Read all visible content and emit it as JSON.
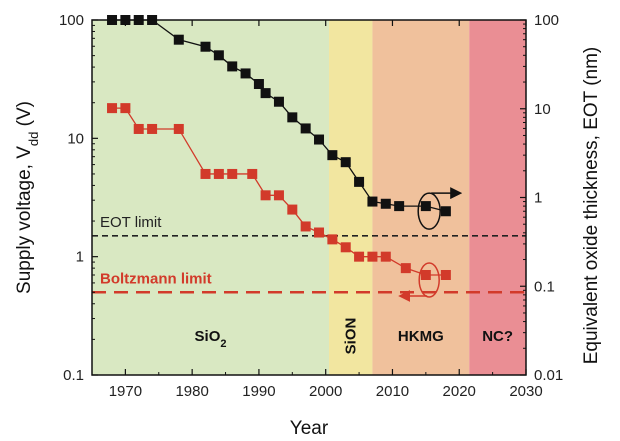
{
  "chart_data": {
    "type": "scatter",
    "title": "",
    "xlabel": "Year",
    "ylabel_left": "Supply voltage, V",
    "ylabel_left_sub": "dd",
    "ylabel_left_unit": " (V)",
    "ylabel_right": "Equivalent oxide thickness, EOT (nm)",
    "xlim": [
      1965,
      2030
    ],
    "ylim_left": [
      0.1,
      100
    ],
    "ylim_right": [
      0.01,
      100
    ],
    "yscale": "log",
    "x_ticks": [
      1970,
      1980,
      1990,
      2000,
      2010,
      2020,
      2030
    ],
    "y_left_ticks": [
      {
        "value": 0.1,
        "label": "0.1"
      },
      {
        "value": 1,
        "label": "1"
      },
      {
        "value": 10,
        "label": "10"
      },
      {
        "value": 100,
        "label": "100"
      }
    ],
    "y_right_ticks": [
      {
        "value": 0.01,
        "label": "0.01"
      },
      {
        "value": 0.1,
        "label": "0.1"
      },
      {
        "value": 1,
        "label": "1"
      },
      {
        "value": 10,
        "label": "10"
      },
      {
        "value": 100,
        "label": "100"
      }
    ],
    "regions": [
      {
        "label": "SiO",
        "sub": "2",
        "x0": 1965,
        "x1": 2000.5,
        "color": "#d9e8c2",
        "vertical": false
      },
      {
        "label": "SiON",
        "sub": "",
        "x0": 2000.5,
        "x1": 2007,
        "color": "#f2e6a0",
        "vertical": true
      },
      {
        "label": "HKMG",
        "sub": "",
        "x0": 2007,
        "x1": 2021.5,
        "color": "#f0c19c",
        "vertical": false
      },
      {
        "label": "NC?",
        "sub": "",
        "x0": 2021.5,
        "x1": 2030,
        "color": "#ea8e94",
        "vertical": false
      }
    ],
    "reference_lines": [
      {
        "label": "EOT limit",
        "y": 1.5,
        "axis": "left",
        "color": "#222222"
      },
      {
        "label": "Boltzmann limit",
        "y": 0.5,
        "axis": "left",
        "color": "#d23a2a"
      }
    ],
    "series": [
      {
        "axis": "right",
        "color": "#111111",
        "x": [
          1968,
          1970,
          1972,
          1974,
          1978,
          1982,
          1984,
          1986,
          1988,
          1990,
          1991,
          1993,
          1995,
          1997,
          1999,
          2001,
          2003,
          2005,
          2007,
          2009,
          2011,
          2015,
          2018
        ],
        "y": [
          100,
          100,
          100,
          100,
          60,
          50,
          40,
          30,
          25,
          19,
          15,
          12,
          8,
          6,
          4.5,
          3,
          2.5,
          1.5,
          0.9,
          0.85,
          0.8,
          0.8,
          0.7
        ]
      },
      {
        "axis": "left",
        "color": "#d23a2a",
        "x": [
          1968,
          1970,
          1972,
          1974,
          1978,
          1982,
          1984,
          1986,
          1989,
          1991,
          1993,
          1995,
          1997,
          1999,
          2001,
          2003,
          2005,
          2007,
          2009,
          2012,
          2015,
          2018
        ],
        "y": [
          18,
          18,
          12,
          12,
          12,
          5,
          5,
          5,
          5,
          3.3,
          3.3,
          2.5,
          1.8,
          1.6,
          1.4,
          1.2,
          1.0,
          1.0,
          1.0,
          0.8,
          0.7,
          0.7
        ]
      }
    ]
  }
}
